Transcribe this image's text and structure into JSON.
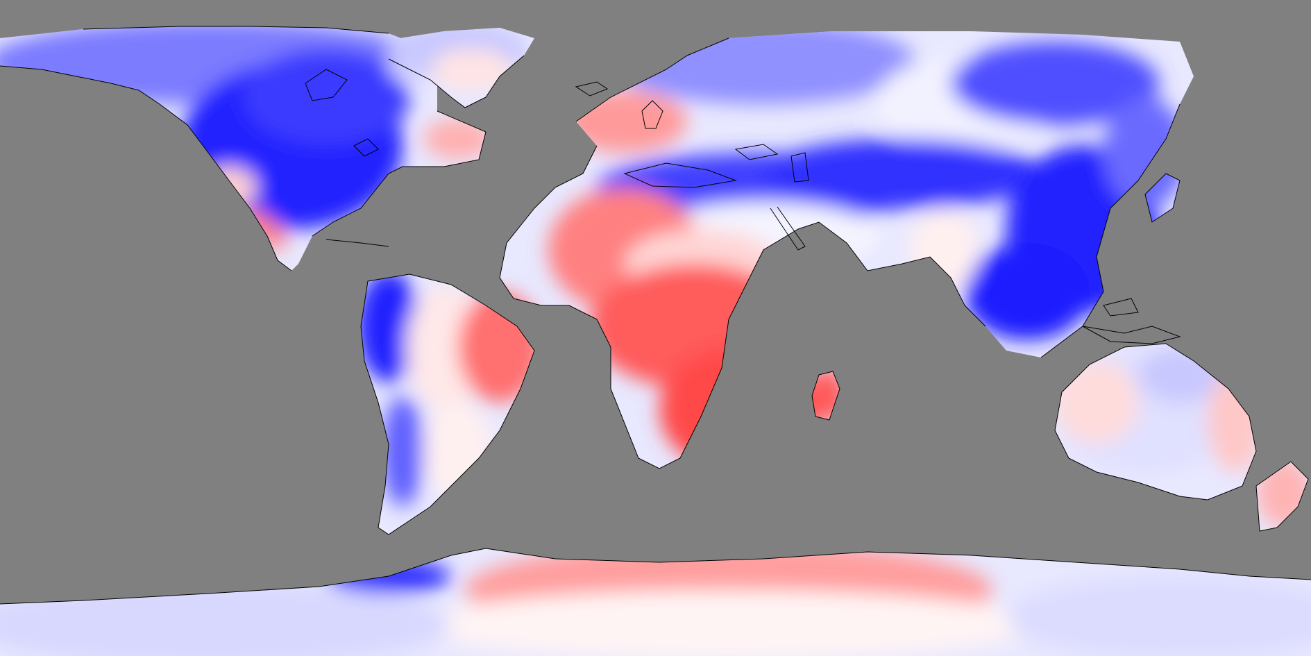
{
  "map": {
    "projection": "equirectangular",
    "ocean_color": "#808080",
    "coastline_color": "#000000",
    "palette": {
      "strong_negative": "#0000ff",
      "negative": "#7373ff",
      "weak_negative": "#c8c8ff",
      "neutral": "#ffffff",
      "weak_positive": "#ffc8c8",
      "positive": "#ff5a5a"
    }
  }
}
